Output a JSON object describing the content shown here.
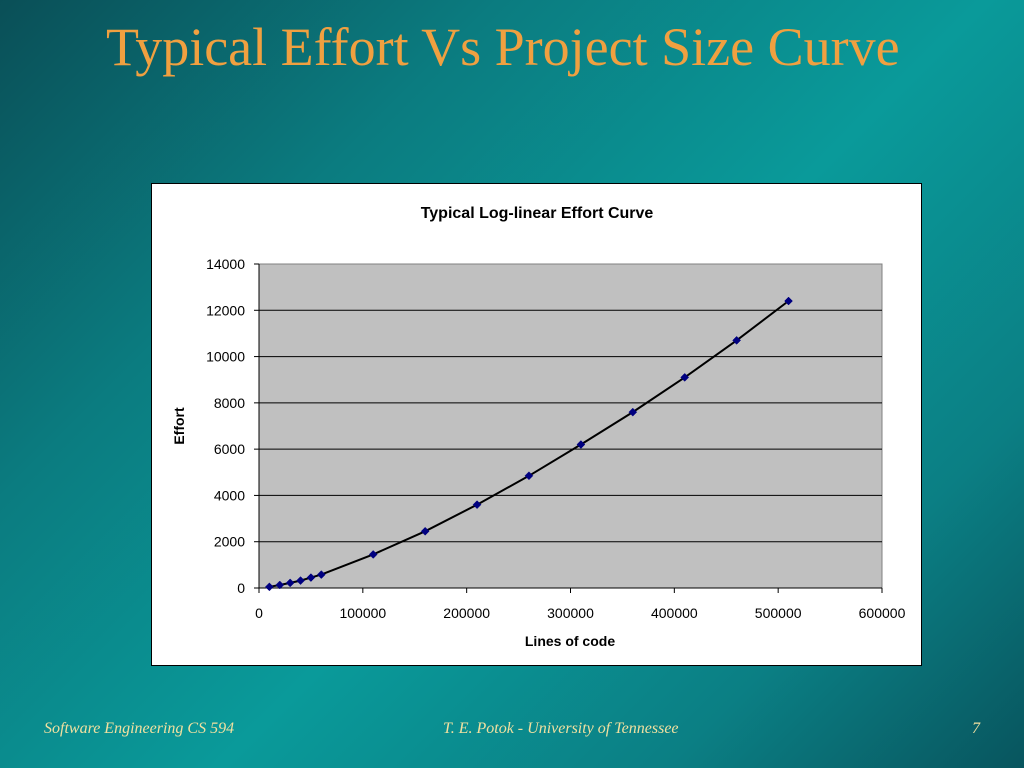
{
  "slide": {
    "title": "Typical Effort Vs Project Size Curve",
    "footer_left": "Software Engineering CS 594",
    "footer_center": "T. E. Potok - University of Tennessee",
    "footer_right": "7"
  },
  "colors": {
    "title": "#f0a040",
    "plot_background": "#c0c0c0",
    "marker": "#000080",
    "curve": "#000000",
    "footer_text": "#f0e0a0"
  },
  "chart_data": {
    "type": "scatter",
    "title": "Typical Log-linear Effort Curve",
    "xlabel": "Lines of code",
    "ylabel": "Effort",
    "xlim": [
      0,
      600000
    ],
    "ylim": [
      0,
      14000
    ],
    "xticks": [
      0,
      100000,
      200000,
      300000,
      400000,
      500000,
      600000
    ],
    "yticks": [
      0,
      2000,
      4000,
      6000,
      8000,
      10000,
      12000,
      14000
    ],
    "grid": "horizontal",
    "legend": "none",
    "trendline": true,
    "series": [
      {
        "x": [
          10000,
          20000,
          30000,
          40000,
          50000,
          60000,
          110000,
          160000,
          210000,
          260000,
          310000,
          360000,
          410000,
          460000,
          510000
        ],
        "y": [
          50,
          130,
          220,
          320,
          450,
          580,
          1450,
          2450,
          3600,
          4850,
          6200,
          7600,
          9100,
          10700,
          12400
        ]
      }
    ]
  }
}
